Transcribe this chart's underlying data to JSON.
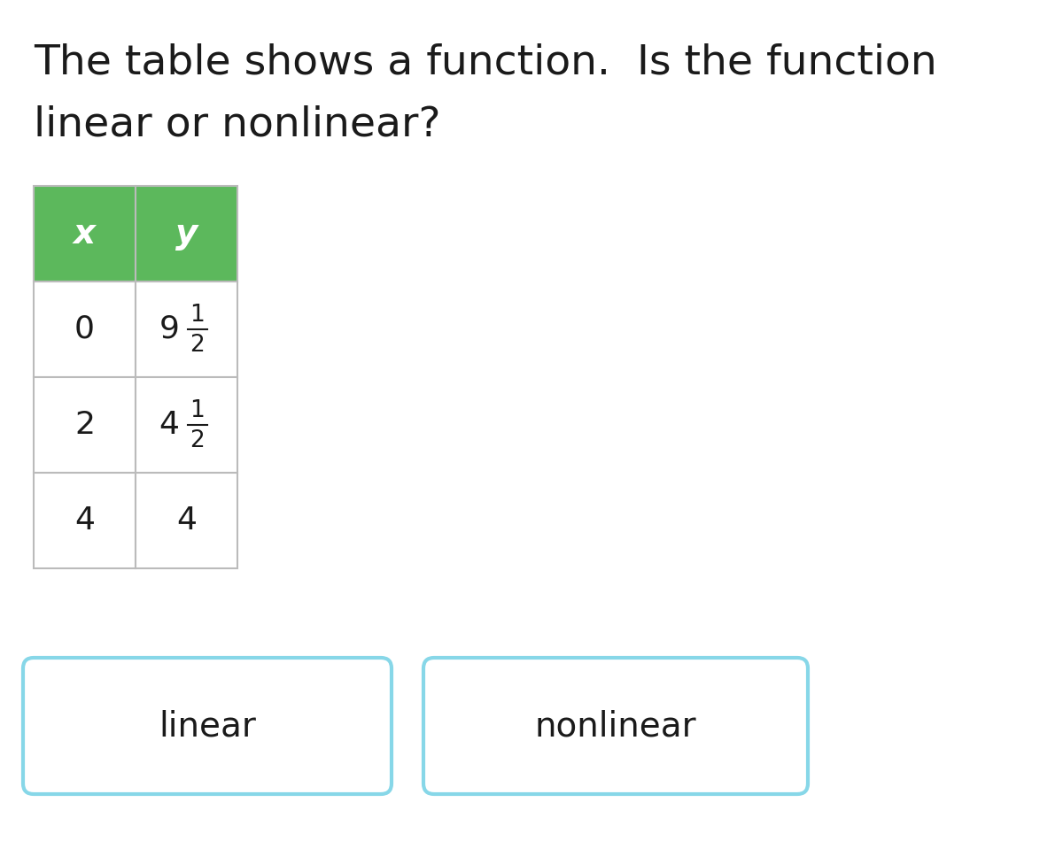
{
  "title_line1": "The table shows a function.  Is the function",
  "title_line2": "linear or nonlinear?",
  "title_fontsize": 34,
  "title_color": "#1a1a1a",
  "bg_color": "#ffffff",
  "table_header_bg": "#5cb85c",
  "table_header_text_color": "#ffffff",
  "table_cell_bg": "#ffffff",
  "table_border_color": "#bbbbbb",
  "x_values": [
    "0",
    "2",
    "4"
  ],
  "y_values_main": [
    "9",
    "4",
    "4"
  ],
  "y_values_frac": [
    true,
    true,
    false
  ],
  "button_border_color": "#87d7e8",
  "button_bg_color": "#ffffff",
  "button_text_color": "#1a1a1a",
  "button_fontsize": 28,
  "button1_label": "linear",
  "button2_label": "nonlinear",
  "cell_text_fontsize": 26,
  "header_fontsize": 28
}
